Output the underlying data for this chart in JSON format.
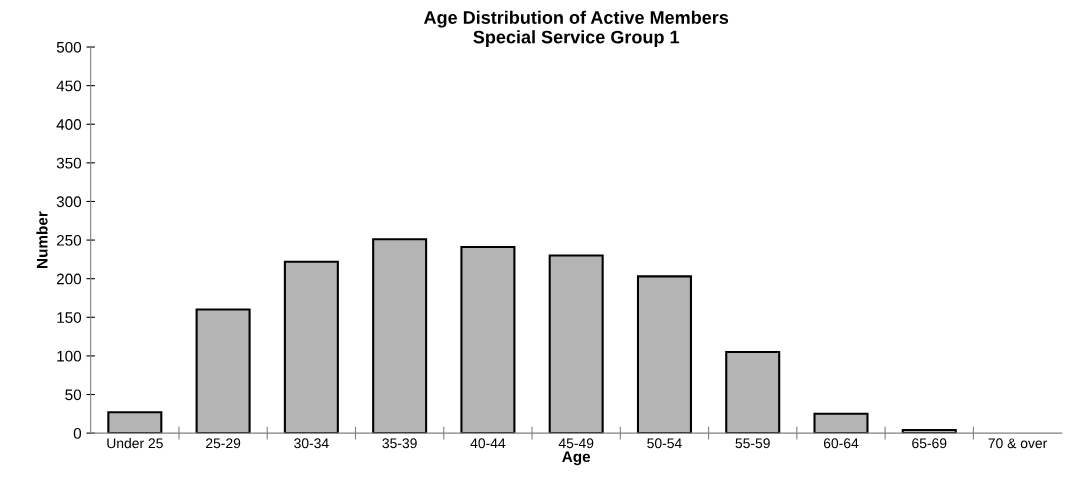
{
  "chart_data": {
    "type": "bar",
    "title": "Age Distribution of Active Members\nSpecial Service Group 1",
    "xlabel": "Age",
    "ylabel": "Number",
    "categories": [
      "Under 25",
      "25-29",
      "30-34",
      "35-39",
      "40-44",
      "45-49",
      "50-54",
      "55-59",
      "60-64",
      "65-69",
      "70 & over"
    ],
    "values": [
      27,
      160,
      222,
      251,
      241,
      230,
      203,
      105,
      25,
      4,
      0
    ],
    "color": "#b4b4b4",
    "ylim": [
      0,
      500
    ],
    "yticks": [
      0,
      50,
      100,
      150,
      200,
      250,
      300,
      350,
      400,
      450,
      500
    ],
    "grid": false,
    "legend": false
  }
}
